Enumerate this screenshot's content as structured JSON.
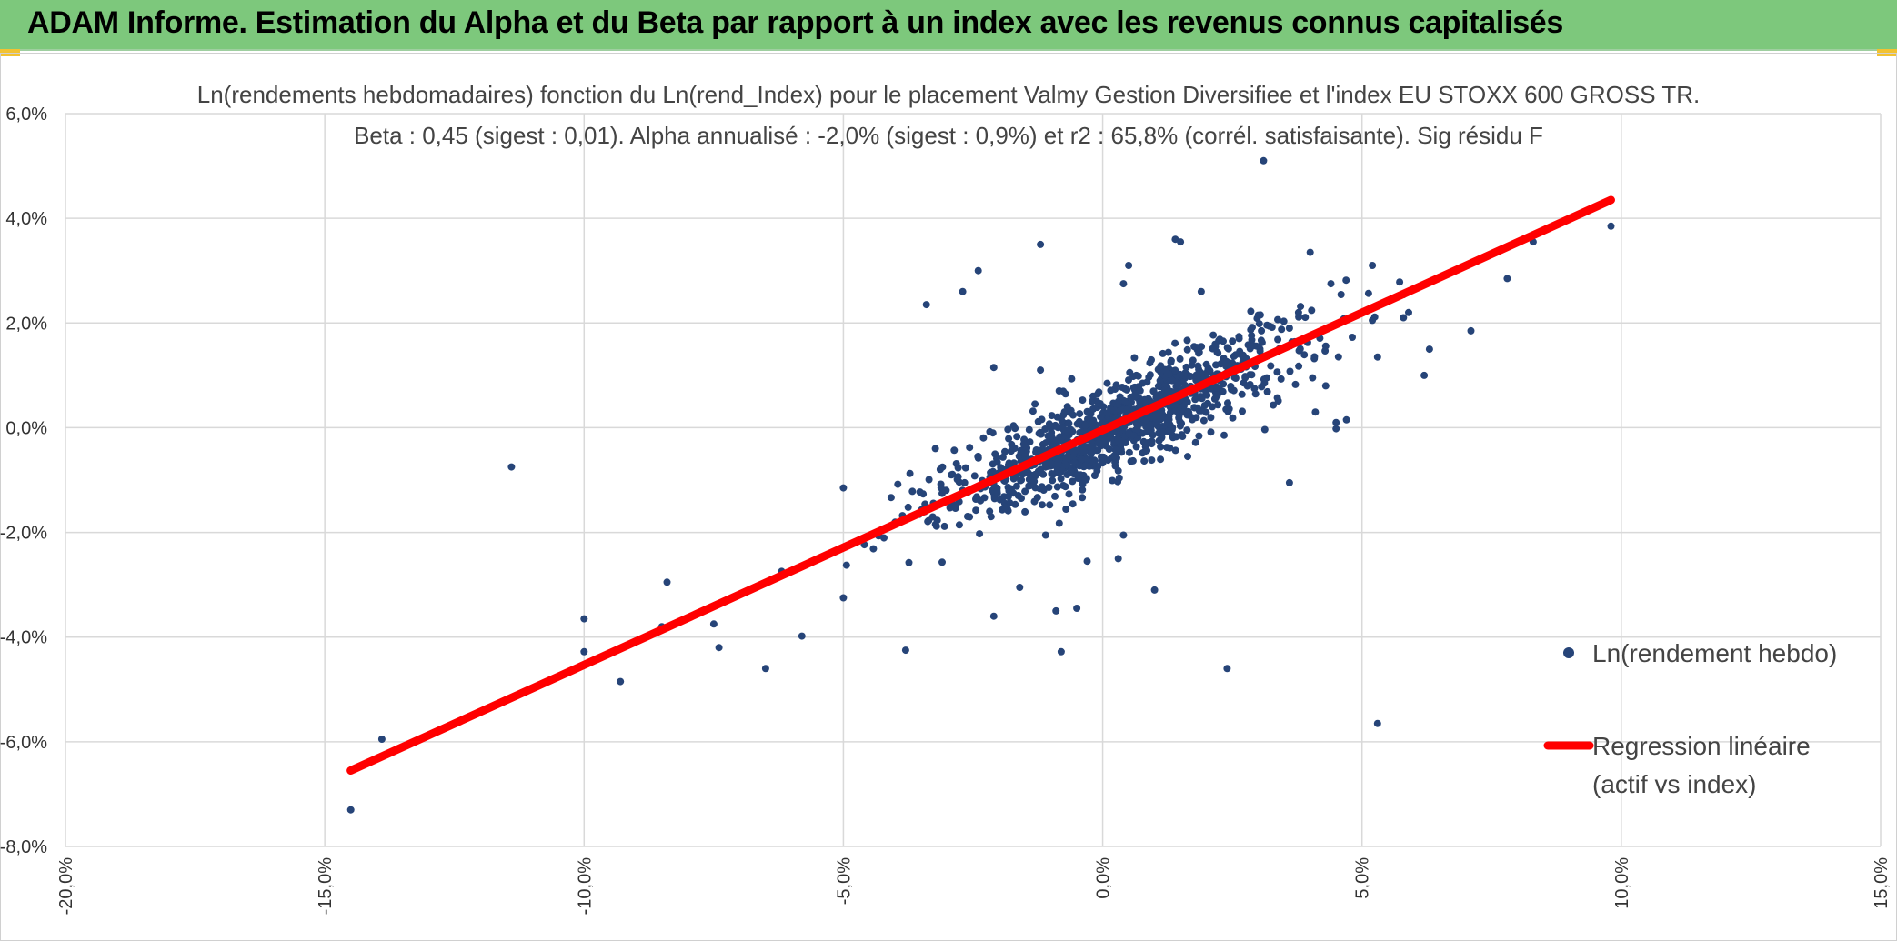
{
  "header": {
    "title": "ADAM Informe. Estimation du Alpha et du Beta par rapport à un index avec les revenus connus capitalisés"
  },
  "colors": {
    "header_bg": "#7dc87c",
    "points": "#264478",
    "regression": "#ff0000",
    "grid": "#d9d9d9"
  },
  "chart_data": {
    "type": "scatter",
    "title": "Ln(rendements hebdomadaires) fonction du Ln(rend_Index) pour le placement Valmy Gestion Diversifiee et l'index EU STOXX 600 GROSS TR.",
    "subtitle": "Beta : 0,45 (sigest : 0,01).  Alpha annualisé : -2,0% (sigest : 0,9%) et r2 : 65,8% (corrél. satisfaisante). Sig résidu F",
    "xlim": [
      -0.2,
      0.15
    ],
    "ylim": [
      -0.08,
      0.06
    ],
    "x_ticks": [
      "-20,0%",
      "-15,0%",
      "-10,0%",
      "-5,0%",
      "0,0%",
      "5,0%",
      "10,0%",
      "15,0%"
    ],
    "y_ticks": [
      "6,0%",
      "4,0%",
      "2,0%",
      "0,0%",
      "-2,0%",
      "-4,0%",
      "-6,0%",
      "-8,0%"
    ],
    "grid": true,
    "legend_position": "right",
    "series": [
      {
        "name": "Ln(rendement hebdo)",
        "kind": "points",
        "color": "#264478",
        "outliers": [
          [
            -0.145,
            -0.073
          ],
          [
            -0.139,
            -0.0595
          ],
          [
            -0.114,
            -0.0075
          ],
          [
            -0.1,
            -0.0365
          ],
          [
            -0.1,
            -0.0428
          ],
          [
            -0.093,
            -0.0485
          ],
          [
            -0.084,
            -0.0295
          ],
          [
            -0.085,
            -0.038
          ],
          [
            -0.075,
            -0.0375
          ],
          [
            -0.074,
            -0.042
          ],
          [
            -0.065,
            -0.046
          ],
          [
            -0.058,
            -0.0398
          ],
          [
            -0.05,
            -0.0115
          ],
          [
            -0.05,
            -0.0325
          ],
          [
            -0.038,
            -0.0425
          ],
          [
            -0.034,
            0.0235
          ],
          [
            -0.027,
            0.026
          ],
          [
            -0.024,
            0.03
          ],
          [
            -0.021,
            0.0115
          ],
          [
            -0.012,
            0.035
          ],
          [
            -0.012,
            0.011
          ],
          [
            -0.021,
            -0.036
          ],
          [
            -0.016,
            -0.0305
          ],
          [
            -0.009,
            -0.035
          ],
          [
            -0.008,
            -0.0428
          ],
          [
            -0.005,
            -0.0345
          ],
          [
            0.005,
            0.031
          ],
          [
            0.004,
            0.0275
          ],
          [
            0.014,
            0.036
          ],
          [
            0.015,
            0.0355
          ],
          [
            0.019,
            0.026
          ],
          [
            0.01,
            -0.031
          ],
          [
            0.04,
            0.0335
          ],
          [
            0.052,
            0.031
          ],
          [
            0.031,
            0.051
          ],
          [
            0.036,
            -0.0105
          ],
          [
            0.024,
            -0.046
          ],
          [
            0.053,
            -0.0565
          ],
          [
            0.059,
            0.022
          ],
          [
            0.058,
            0.021
          ],
          [
            0.062,
            0.01
          ],
          [
            0.063,
            0.015
          ],
          [
            0.071,
            0.0185
          ],
          [
            0.078,
            0.0285
          ],
          [
            0.083,
            0.0355
          ],
          [
            0.098,
            0.0385
          ],
          [
            0.045,
            0.001
          ],
          [
            0.047,
            0.0015
          ],
          [
            0.045,
            -0.0002
          ],
          [
            0.053,
            0.0135
          ],
          [
            0.052,
            0.0205
          ],
          [
            0.043,
            0.008
          ],
          [
            0.044,
            0.0275
          ],
          [
            -0.011,
            -0.0205
          ],
          [
            -0.003,
            -0.0255
          ],
          [
            0.003,
            -0.025
          ],
          [
            0.004,
            -0.0205
          ],
          [
            0.03,
            0.0215
          ],
          [
            0.036,
            0.019
          ],
          [
            0.041,
            0.003
          ]
        ],
        "cluster": {
          "count": 1100,
          "x_center": 0.002,
          "x_spread": 0.017,
          "slope": 0.45,
          "intercept": -0.0004,
          "noise": 0.0055
        }
      },
      {
        "name": "Regression linéaire",
        "name_line2": "(actif vs index)",
        "kind": "line",
        "color": "#ff0000",
        "x": [
          -0.145,
          0.098
        ],
        "y": [
          -0.0655,
          0.0435
        ]
      }
    ]
  }
}
